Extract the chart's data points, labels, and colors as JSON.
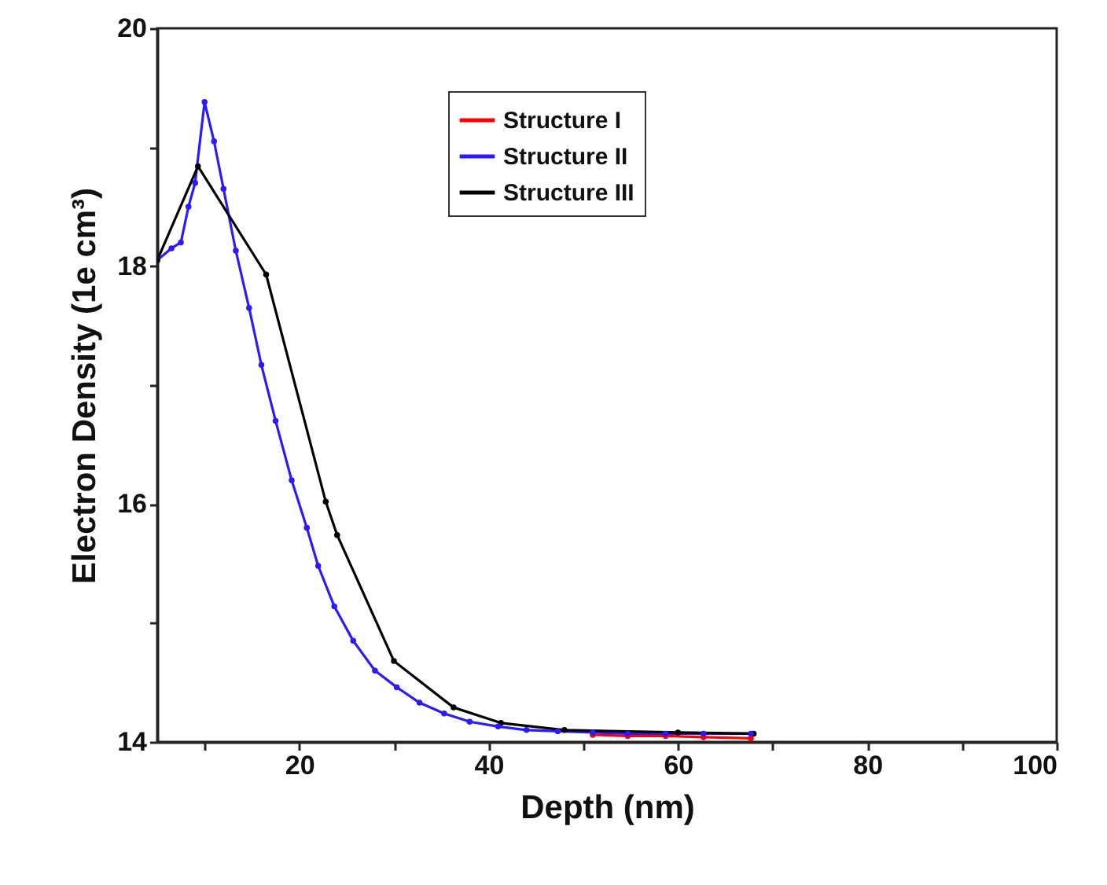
{
  "chart_data": {
    "type": "line",
    "xlabel": "Depth (nm)",
    "ylabel": "Electron Density (1e cm³)",
    "xlim": [
      5,
      100
    ],
    "ylim": [
      14,
      20
    ],
    "xticks": [
      {
        "value": 10,
        "label": null
      },
      20,
      {
        "value": 30,
        "label": null
      },
      40,
      {
        "value": 50,
        "label": null
      },
      60,
      {
        "value": 70,
        "label": null
      },
      80,
      {
        "value": 90,
        "label": null
      },
      100
    ],
    "yticks": [
      14,
      {
        "value": 15,
        "label": null
      },
      16,
      {
        "value": 17,
        "label": null
      },
      18,
      {
        "value": 19,
        "label": null
      },
      20
    ],
    "grid": false,
    "legend": "top",
    "marker": "circle",
    "line_style": "solid",
    "series": [
      {
        "name": "Structure I",
        "color": "#ff0000",
        "x": [
          51,
          54.7,
          58.7,
          62.7,
          67.7
        ],
        "values": [
          14.06,
          14.05,
          14.05,
          14.04,
          14.03
        ]
      },
      {
        "name": "Structure II",
        "color": "#2a1aff",
        "x": [
          5,
          6.5,
          7.5,
          8.3,
          9,
          10,
          11,
          12,
          13.3,
          14.7,
          16,
          17.5,
          19.2,
          20.8,
          22,
          23.7,
          25.7,
          28,
          30.3,
          32.7,
          35.3,
          38,
          41,
          44,
          47.3,
          51,
          54.7,
          58.7,
          62.7,
          67.7
        ],
        "values": [
          18.05,
          18.15,
          18.2,
          18.5,
          18.7,
          19.38,
          19.05,
          18.65,
          18.13,
          17.65,
          17.17,
          16.7,
          16.2,
          15.8,
          15.48,
          15.14,
          14.85,
          14.6,
          14.46,
          14.33,
          14.24,
          14.17,
          14.13,
          14.1,
          14.09,
          14.08,
          14.07,
          14.07,
          14.07,
          14.07
        ]
      },
      {
        "name": "Structure III",
        "color": "#000000",
        "x": [
          5,
          9.3,
          16.5,
          22.8,
          24,
          30,
          36.3,
          41.3,
          48,
          60,
          68
        ],
        "values": [
          18.05,
          18.84,
          17.93,
          16.02,
          15.74,
          14.68,
          14.29,
          14.16,
          14.1,
          14.08,
          14.07
        ]
      }
    ]
  }
}
